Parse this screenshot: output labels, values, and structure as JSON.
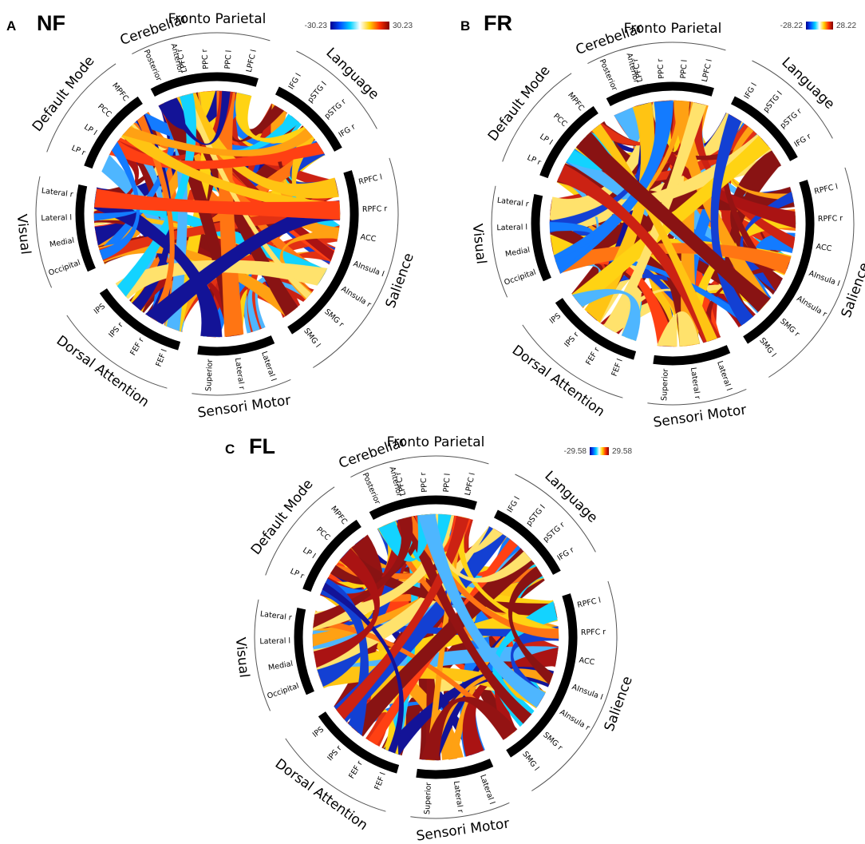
{
  "panels": [
    {
      "letter": "A",
      "condition": "NF",
      "colorbar": {
        "min": "-30.23",
        "max": "30.23"
      }
    },
    {
      "letter": "B",
      "condition": "FR",
      "colorbar": {
        "min": "-28.22",
        "max": "28.22"
      }
    },
    {
      "letter": "C",
      "condition": "FL",
      "colorbar": {
        "min": "-29.58",
        "max": "29.58"
      }
    }
  ],
  "networks": [
    {
      "name": "Fronto Parietal",
      "nodes": [
        "LPFC r",
        "PPC r",
        "PPC l",
        "LPFC l"
      ]
    },
    {
      "name": "Language",
      "nodes": [
        "IFG l",
        "pSTG l",
        "pSTG r",
        "IFG r"
      ]
    },
    {
      "name": "Salience",
      "nodes": [
        "RPFC l",
        "RPFC r",
        "ACC",
        "AInsula l",
        "AInsula r",
        "SMG r",
        "SMG l"
      ]
    },
    {
      "name": "Sensori Motor",
      "nodes": [
        "Lateral l",
        "Lateral r",
        "Superior"
      ]
    },
    {
      "name": "Dorsal Attention",
      "nodes": [
        "FEF l",
        "FEF r",
        "IPS r",
        "IPS"
      ]
    },
    {
      "name": "Visual",
      "nodes": [
        "Occipital",
        "Medial",
        "Lateral l",
        "Lateral r"
      ]
    },
    {
      "name": "Default Mode",
      "nodes": [
        "LP r",
        "LP l",
        "PCC",
        "MPFC"
      ]
    },
    {
      "name": "Cerebellar",
      "nodes": [
        "Posterior",
        "Anterior"
      ]
    }
  ],
  "colorbar_colors": [
    "#00008f",
    "#0050ff",
    "#00d0ff",
    "#ffffff",
    "#ffd000",
    "#ff3000",
    "#7f0000"
  ]
}
